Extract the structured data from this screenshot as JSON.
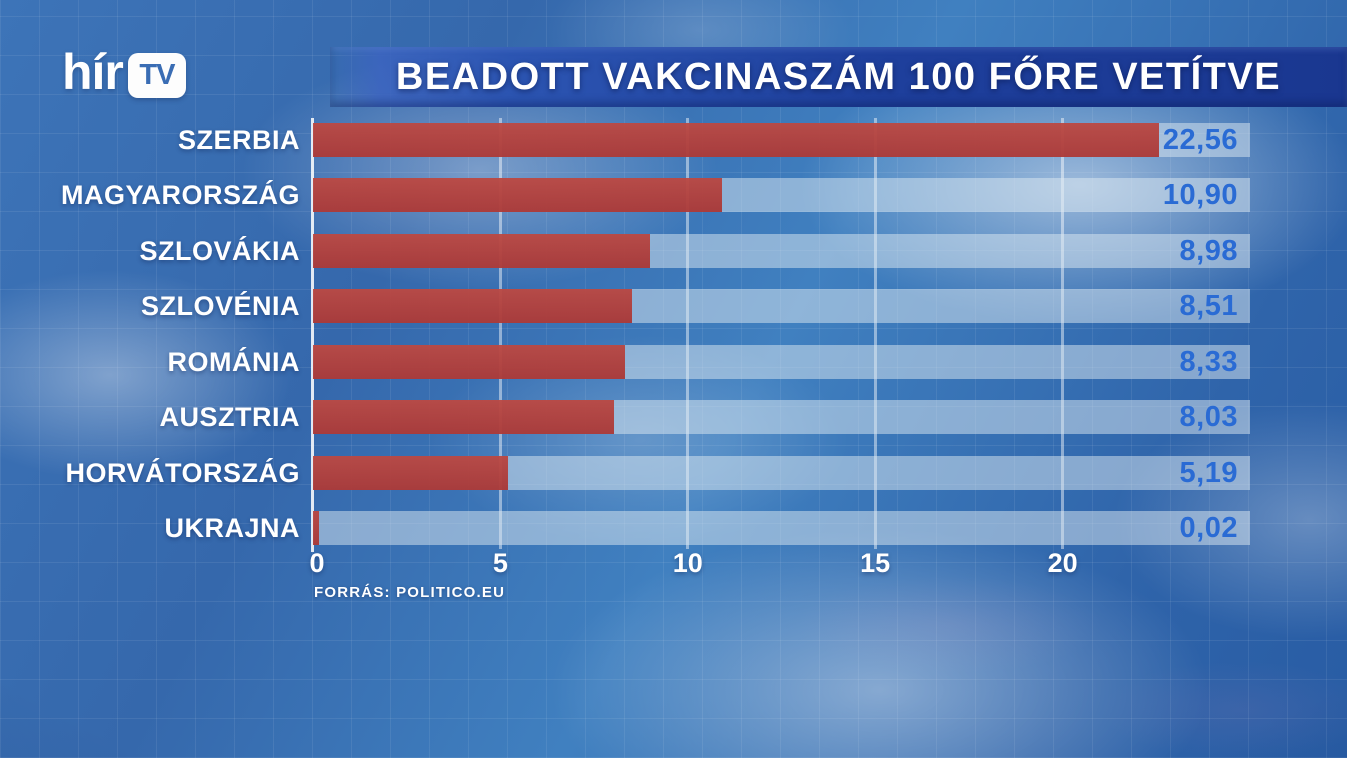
{
  "brand": {
    "logo_text": "hír",
    "logo_box_text": "TV"
  },
  "header": {
    "title": "BEADOTT VAKCINASZÁM 100 FŐRE VETÍTVE"
  },
  "source": {
    "label": "FORRÁS: POLITICO.EU"
  },
  "colors": {
    "bar_red": "#b23a36",
    "value_blue": "#2a6bd4",
    "title_band_blue": "#1e3f9c",
    "background_blue": "#3a6fb3",
    "track_light": "rgba(222,233,241,0.5)",
    "text_white": "#ffffff"
  },
  "chart_data": {
    "type": "bar",
    "orientation": "horizontal",
    "title": "BEADOTT VAKCINASZÁM 100 FŐRE VETÍTVE",
    "source": "FORRÁS: POLITICO.EU",
    "categories": [
      "SZERBIA",
      "MAGYARORSZÁG",
      "SZLOVÁKIA",
      "SZLOVÉNIA",
      "ROMÁNIA",
      "AUSZTRIA",
      "HORVÁTORSZÁG",
      "UKRAJNA"
    ],
    "values": [
      22.56,
      10.9,
      8.98,
      8.51,
      8.33,
      8.03,
      5.19,
      0.02
    ],
    "value_labels": [
      "22,56",
      "10,90",
      "8,98",
      "8,51",
      "8,33",
      "8,03",
      "5,19",
      "0,02"
    ],
    "xlabel": "",
    "ylabel": "",
    "xlim": [
      0,
      25
    ],
    "xticks": [
      0,
      5,
      10,
      15,
      20
    ],
    "grid": "vertical",
    "legend": "none"
  }
}
